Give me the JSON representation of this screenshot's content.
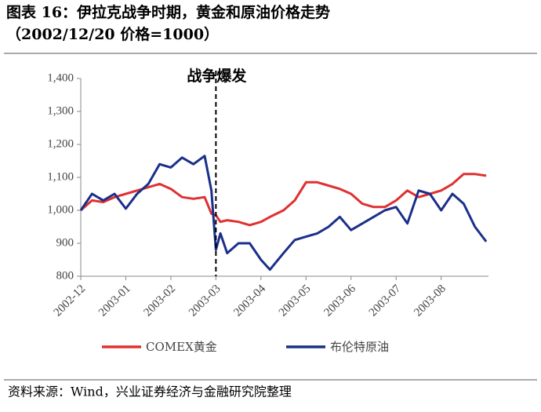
{
  "chart_data": {
    "type": "line",
    "title": "图表 16：伊拉克战争时期，黄金和原油价格走势",
    "subtitle": "（2002/12/20 价格=1000）",
    "source": "资料来源：Wind，兴业证券经济与金融研究院整理",
    "annotation": {
      "label": "战争爆发",
      "x": 3
    },
    "x": [
      0,
      0.25,
      0.5,
      0.75,
      1,
      1.25,
      1.5,
      1.75,
      2,
      2.25,
      2.5,
      2.75,
      2.9,
      3,
      3.1,
      3.25,
      3.5,
      3.75,
      4,
      4.2,
      4.5,
      4.75,
      5,
      5.25,
      5.5,
      5.75,
      6,
      6.25,
      6.5,
      6.75,
      7,
      7.25,
      7.5,
      7.75,
      8,
      8.25,
      8.5,
      8.75,
      9
    ],
    "series": [
      {
        "name": "COMEX黄金",
        "color": "#e03030",
        "values": [
          1000,
          1030,
          1025,
          1040,
          1050,
          1060,
          1070,
          1080,
          1065,
          1040,
          1035,
          1040,
          990,
          985,
          965,
          970,
          965,
          955,
          965,
          980,
          1000,
          1030,
          1085,
          1085,
          1075,
          1065,
          1050,
          1020,
          1010,
          1010,
          1030,
          1060,
          1040,
          1050,
          1060,
          1080,
          1110,
          1110,
          1105
        ]
      },
      {
        "name": "布伦特原油",
        "color": "#1a2f8a",
        "values": [
          1000,
          1050,
          1030,
          1050,
          1005,
          1050,
          1080,
          1140,
          1130,
          1160,
          1140,
          1165,
          1060,
          880,
          930,
          870,
          900,
          900,
          850,
          820,
          870,
          910,
          920,
          930,
          950,
          980,
          940,
          960,
          980,
          1000,
          1010,
          960,
          1060,
          1050,
          1000,
          1050,
          1020,
          950,
          905
        ]
      }
    ],
    "xlim": [
      0,
      9.05
    ],
    "xticks": [
      {
        "value": 0,
        "label": "2002-12"
      },
      {
        "value": 1,
        "label": "2003-01"
      },
      {
        "value": 2,
        "label": "2003-02"
      },
      {
        "value": 3,
        "label": "2003-03"
      },
      {
        "value": 4,
        "label": "2003-04"
      },
      {
        "value": 5,
        "label": "2003-05"
      },
      {
        "value": 6,
        "label": "2003-06"
      },
      {
        "value": 7,
        "label": "2003-07"
      },
      {
        "value": 8,
        "label": "2003-08"
      }
    ],
    "ylim": [
      800,
      1400
    ],
    "yticks": [
      800,
      900,
      {
        "value": 1000,
        "label": "1,000"
      },
      {
        "value": 1100,
        "label": "1,100"
      },
      {
        "value": 1200,
        "label": "1,200"
      },
      {
        "value": 1300,
        "label": "1,300"
      },
      {
        "value": 1400,
        "label": "1,400"
      }
    ]
  }
}
